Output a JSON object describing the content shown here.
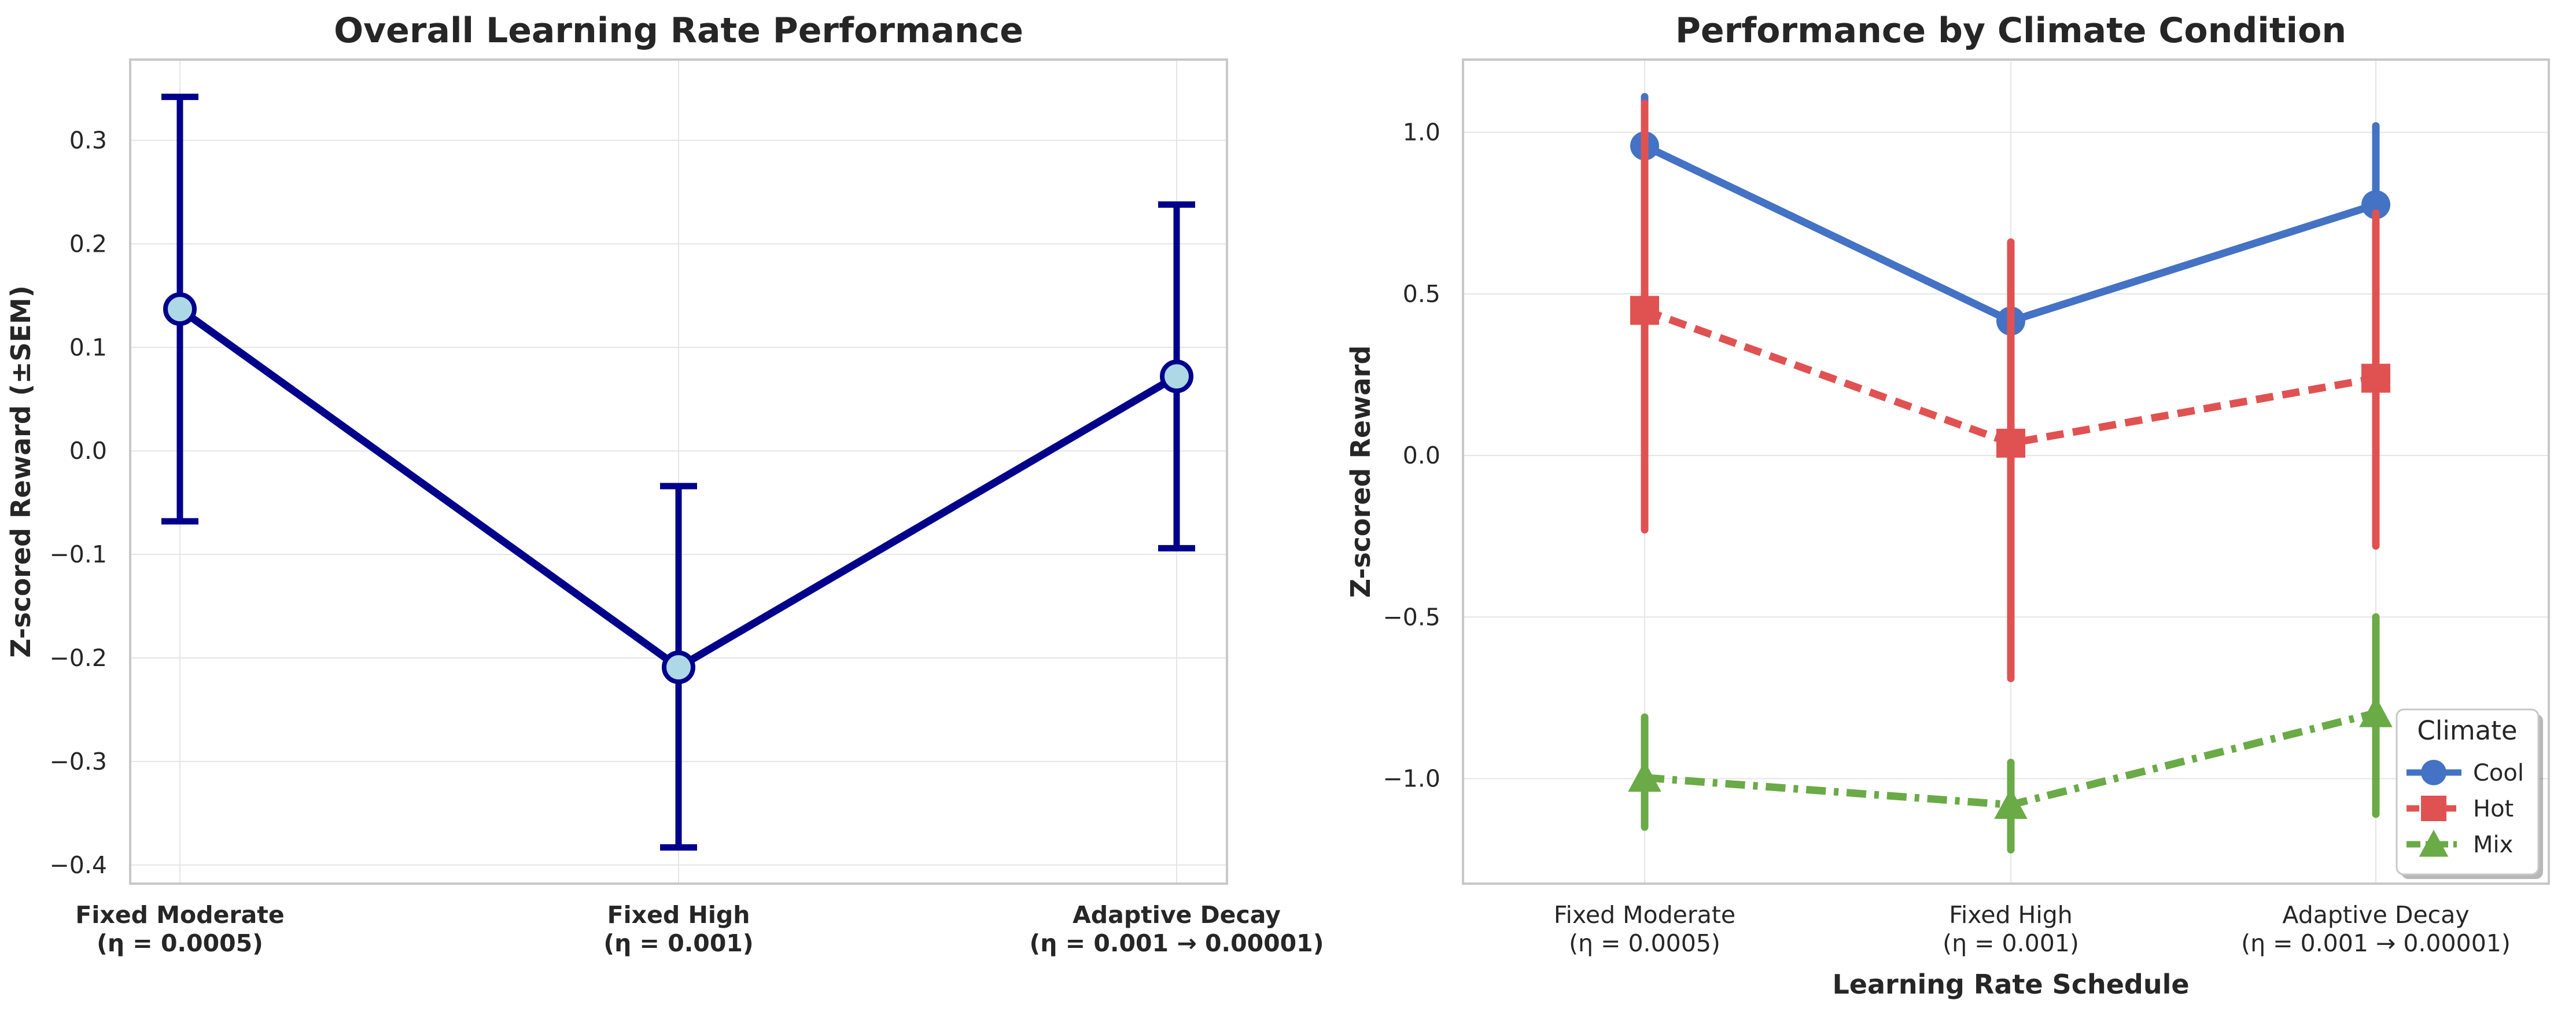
{
  "chart_data": [
    {
      "type": "line",
      "title": "Overall Learning Rate Performance",
      "xlabel": "",
      "ylabel": "Z-scored Reward (±SEM)",
      "categories": [
        {
          "line1": "Fixed Moderate",
          "line2": "(η = 0.0005)"
        },
        {
          "line1": "Fixed High",
          "line2": "(η = 0.001)"
        },
        {
          "line1": "Adaptive Decay",
          "line2": "(η = 0.001 → 0.00001)"
        }
      ],
      "series": [
        {
          "values": [
            0.137,
            -0.209,
            0.072
          ],
          "error_low": [
            -0.068,
            -0.383,
            -0.094
          ],
          "error_high": [
            0.342,
            -0.034,
            0.238
          ],
          "color": "#00008b",
          "marker_fill": "#add8e6",
          "marker": "circle",
          "line_style": "solid"
        }
      ],
      "ylim": [
        -0.418,
        0.378
      ],
      "yticks": [
        -0.4,
        -0.3,
        -0.2,
        -0.1,
        0.0,
        0.1,
        0.2,
        0.3
      ],
      "ytick_labels": [
        "−0.4",
        "−0.3",
        "−0.2",
        "−0.1",
        "0.0",
        "0.1",
        "0.2",
        "0.3"
      ],
      "grid": true
    },
    {
      "type": "line",
      "title": "Performance by Climate Condition",
      "xlabel": "Learning Rate Schedule",
      "ylabel": "Z-scored Reward",
      "categories": [
        {
          "line1": "Fixed Moderate",
          "line2": "(η = 0.0005)"
        },
        {
          "line1": "Fixed High",
          "line2": "(η = 0.001)"
        },
        {
          "line1": "Adaptive Decay",
          "line2": "(η = 0.001 → 0.00001)"
        }
      ],
      "series": [
        {
          "name": "Cool",
          "values": [
            0.958,
            0.416,
            0.776
          ],
          "error_low": [
            0.8,
            0.17,
            0.53
          ],
          "error_high": [
            1.11,
            0.66,
            1.02
          ],
          "color": "#4472c4",
          "marker": "circle",
          "line_style": "solid"
        },
        {
          "name": "Hot",
          "values": [
            0.449,
            0.038,
            0.239
          ],
          "error_low": [
            -0.23,
            -0.69,
            -0.28
          ],
          "error_high": [
            1.09,
            0.66,
            0.75
          ],
          "color": "#e05252",
          "marker": "square",
          "line_style": "dashed"
        },
        {
          "name": "Mix",
          "values": [
            -0.997,
            -1.081,
            -0.797
          ],
          "error_low": [
            -1.15,
            -1.22,
            -1.11
          ],
          "error_high": [
            -0.81,
            -0.95,
            -0.5
          ],
          "color": "#6aaa47",
          "marker": "triangle",
          "line_style": "dashdot"
        }
      ],
      "ylim": [
        -1.325,
        1.225
      ],
      "yticks": [
        -1.0,
        -0.5,
        0.0,
        0.5,
        1.0
      ],
      "ytick_labels": [
        "−1.0",
        "−0.5",
        "0.0",
        "0.5",
        "1.0"
      ],
      "legend": {
        "title": "Climate",
        "placement": "bottom-right"
      },
      "grid": true
    }
  ]
}
